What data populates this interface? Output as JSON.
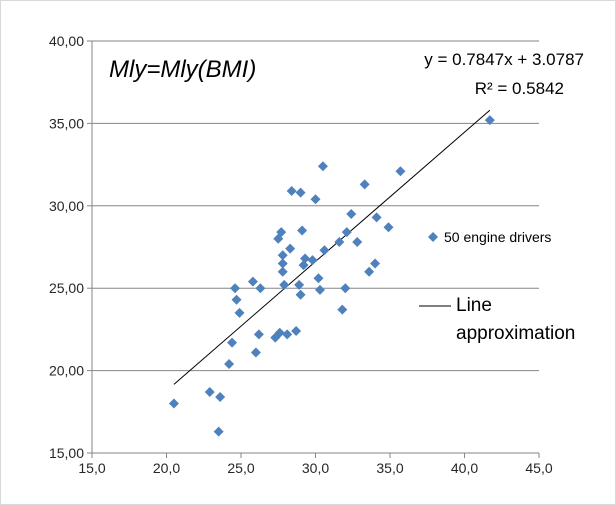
{
  "chart_data": {
    "type": "scatter",
    "title": "Mly=Mly(BMI)",
    "equation": "y = 0.7847x + 3.0787",
    "r_squared": "R² = 0.5842",
    "xlabel": "",
    "ylabel": "",
    "xlim": [
      15,
      45
    ],
    "ylim": [
      15,
      40
    ],
    "x_ticks": [
      "15,0",
      "20,0",
      "25,0",
      "30,0",
      "35,0",
      "40,0",
      "45,0"
    ],
    "y_ticks": [
      "15,00",
      "20,00",
      "25,00",
      "30,00",
      "35,00",
      "40,00"
    ],
    "grid": "horizontal",
    "legend_position": "right",
    "series": [
      {
        "name": "50 engine drivers",
        "color": "#4f81bd",
        "marker": "diamond",
        "points": [
          [
            20.5,
            18.0
          ],
          [
            22.9,
            18.7
          ],
          [
            23.6,
            18.4
          ],
          [
            23.5,
            16.3
          ],
          [
            24.2,
            20.4
          ],
          [
            24.4,
            21.7
          ],
          [
            24.6,
            25.0
          ],
          [
            24.7,
            24.3
          ],
          [
            24.9,
            23.5
          ],
          [
            25.8,
            25.4
          ],
          [
            26.0,
            21.1
          ],
          [
            26.2,
            22.2
          ],
          [
            26.3,
            25.0
          ],
          [
            27.3,
            22.0
          ],
          [
            27.6,
            22.3
          ],
          [
            27.5,
            28.0
          ],
          [
            27.7,
            28.4
          ],
          [
            27.8,
            27.0
          ],
          [
            27.8,
            26.5
          ],
          [
            27.8,
            26.0
          ],
          [
            27.9,
            25.2
          ],
          [
            28.1,
            22.2
          ],
          [
            28.3,
            27.4
          ],
          [
            28.4,
            30.9
          ],
          [
            28.7,
            22.4
          ],
          [
            28.9,
            25.2
          ],
          [
            29.0,
            24.6
          ],
          [
            29.0,
            30.8
          ],
          [
            29.1,
            28.5
          ],
          [
            29.2,
            26.4
          ],
          [
            29.3,
            26.8
          ],
          [
            29.8,
            26.7
          ],
          [
            30.0,
            30.4
          ],
          [
            30.2,
            25.6
          ],
          [
            30.3,
            24.9
          ],
          [
            30.5,
            32.4
          ],
          [
            30.6,
            27.3
          ],
          [
            31.6,
            27.8
          ],
          [
            31.8,
            23.7
          ],
          [
            32.0,
            25.0
          ],
          [
            32.1,
            28.4
          ],
          [
            32.4,
            29.5
          ],
          [
            32.8,
            27.8
          ],
          [
            33.3,
            31.3
          ],
          [
            33.6,
            26.0
          ],
          [
            34.0,
            26.5
          ],
          [
            34.1,
            29.3
          ],
          [
            34.9,
            28.7
          ],
          [
            35.7,
            32.1
          ],
          [
            41.7,
            35.2
          ]
        ]
      },
      {
        "name": "Line approximation",
        "color": "#000000",
        "type": "line",
        "fit": {
          "slope": 0.7847,
          "intercept": 3.0787,
          "x_range": [
            20.5,
            41.7
          ]
        }
      }
    ]
  }
}
